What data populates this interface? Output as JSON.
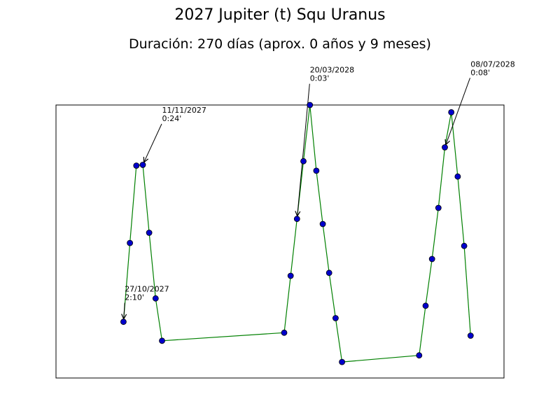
{
  "chart_data": {
    "type": "line",
    "title": "2027 Jupiter (t) Squ Uranus",
    "subtitle": "Duración: 270 días (aprox. 0 años y 9 meses)",
    "xlabel": "",
    "ylabel": "",
    "grid": false,
    "axis_ticks": false,
    "colors": {
      "line": "#008000",
      "marker_fill": "#0000cc",
      "marker_edge": "#000000",
      "frame": "#000000"
    },
    "series": [
      {
        "points": [
          [
            0,
            2.2
          ],
          [
            1,
            13.0
          ],
          [
            2,
            23.6
          ],
          [
            3,
            23.7
          ],
          [
            4,
            14.4
          ],
          [
            5,
            5.4
          ],
          [
            6,
            -0.4
          ],
          [
            25,
            0.7
          ],
          [
            26,
            8.5
          ],
          [
            27,
            16.3
          ],
          [
            28,
            24.2
          ],
          [
            29,
            31.9
          ],
          [
            30,
            22.9
          ],
          [
            31,
            15.6
          ],
          [
            32,
            8.9
          ],
          [
            33,
            2.7
          ],
          [
            34,
            -3.3
          ],
          [
            46,
            -2.4
          ],
          [
            47,
            4.4
          ],
          [
            48,
            10.8
          ],
          [
            49,
            17.8
          ],
          [
            50,
            26.1
          ],
          [
            51,
            30.9
          ],
          [
            52,
            22.1
          ],
          [
            53,
            12.6
          ],
          [
            54,
            0.3
          ]
        ]
      }
    ],
    "annotations": [
      {
        "point_index": 0,
        "date": "27/10/2027",
        "time": "2:10'",
        "label_at": [
          0.2,
          5.0
        ]
      },
      {
        "point_index": 3,
        "date": "11/11/2027",
        "time": "0:24'",
        "label_at": [
          6.0,
          29.5
        ]
      },
      {
        "point_index": 9,
        "date": "20/03/2028",
        "time": "0:03'",
        "label_at": [
          29.0,
          35.0
        ]
      },
      {
        "point_index": 21,
        "date": "08/07/2028",
        "time": "0:08'",
        "label_at": [
          54.0,
          35.8
        ]
      }
    ],
    "xlim": [
      -10.5,
      59.2
    ],
    "ylim": [
      -5.5,
      31.9
    ]
  }
}
